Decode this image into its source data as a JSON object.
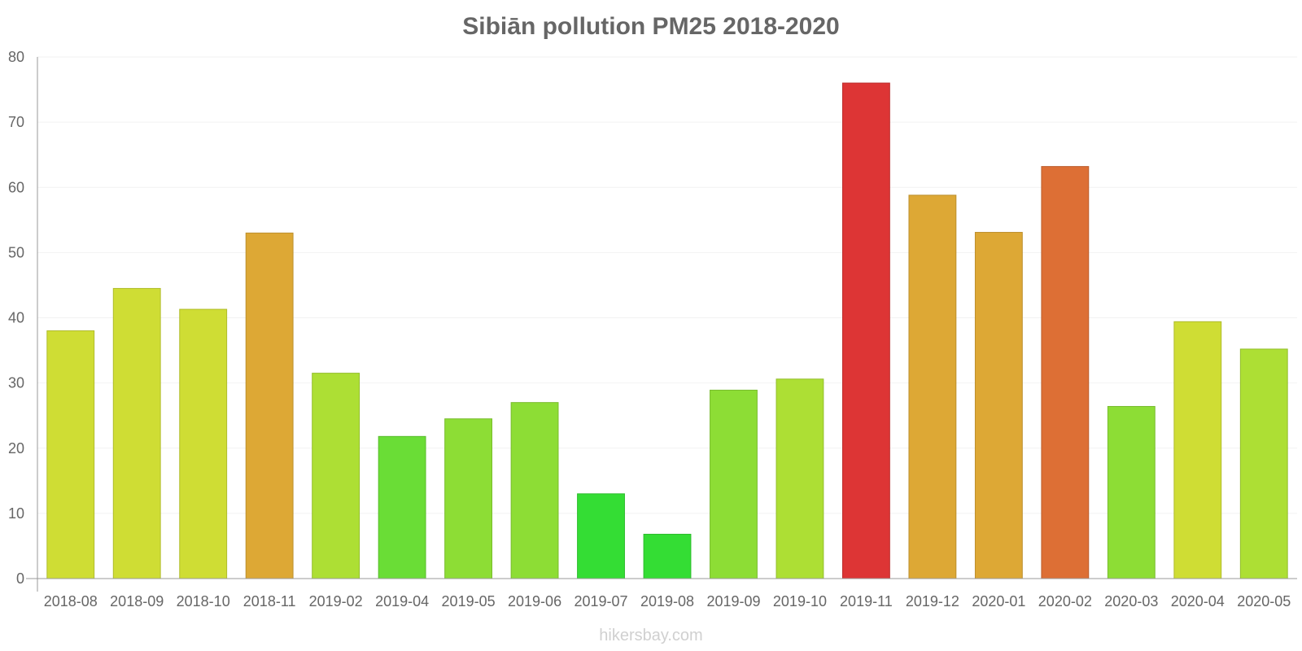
{
  "chart_data": {
    "type": "bar",
    "title": "Sibiān pollution PM25 2018-2020",
    "xlabel": "",
    "ylabel": "",
    "ylim": [
      0,
      80
    ],
    "yticks": [
      0,
      10,
      20,
      30,
      40,
      50,
      60,
      70,
      80
    ],
    "grid": true,
    "categories": [
      "2018-08",
      "2018-09",
      "2018-10",
      "2018-11",
      "2019-02",
      "2019-04",
      "2019-05",
      "2019-06",
      "2019-07",
      "2019-08",
      "2019-09",
      "2019-10",
      "2019-11",
      "2019-12",
      "2020-01",
      "2020-02",
      "2020-03",
      "2020-04",
      "2020-05"
    ],
    "values": [
      38,
      44.5,
      41.3,
      53,
      31.5,
      21.8,
      24.5,
      27,
      13,
      6.8,
      28.9,
      30.6,
      76,
      58.8,
      53.1,
      63.2,
      26.4,
      39.4,
      35.2
    ],
    "colors": [
      "#cfdd34",
      "#cfdd34",
      "#cfdd34",
      "#dda835",
      "#addf34",
      "#6add36",
      "#8ddd35",
      "#8ddd35",
      "#34dd34",
      "#34dd34",
      "#8ddd35",
      "#addf34",
      "#dd3535",
      "#dda835",
      "#dda835",
      "#dd6f35",
      "#8ddd35",
      "#cfdd34",
      "#addf34"
    ]
  },
  "footer": {
    "watermark": "hikersbay.com"
  }
}
